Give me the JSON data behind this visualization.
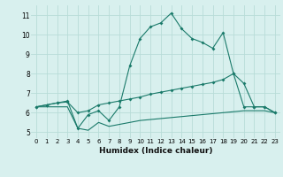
{
  "xlabel": "Humidex (Indice chaleur)",
  "x": [
    0,
    1,
    2,
    3,
    4,
    5,
    6,
    7,
    8,
    9,
    10,
    11,
    12,
    13,
    14,
    15,
    16,
    17,
    18,
    19,
    20,
    21,
    22,
    23
  ],
  "line1": [
    6.3,
    6.4,
    6.5,
    6.6,
    5.2,
    5.9,
    6.1,
    5.6,
    6.3,
    8.4,
    9.8,
    10.4,
    10.6,
    11.1,
    10.3,
    9.8,
    9.6,
    9.3,
    10.1,
    8.0,
    6.3,
    6.3,
    6.3,
    6.0
  ],
  "line2": [
    6.3,
    6.4,
    6.5,
    6.55,
    6.0,
    6.1,
    6.4,
    6.5,
    6.6,
    6.7,
    6.8,
    6.95,
    7.05,
    7.15,
    7.25,
    7.35,
    7.45,
    7.55,
    7.7,
    8.0,
    7.5,
    6.3,
    6.3,
    6.0
  ],
  "line3": [
    6.3,
    6.3,
    6.3,
    6.3,
    5.2,
    5.1,
    5.5,
    5.3,
    5.4,
    5.5,
    5.6,
    5.65,
    5.7,
    5.75,
    5.8,
    5.85,
    5.9,
    5.95,
    6.0,
    6.05,
    6.1,
    6.1,
    6.1,
    6.0
  ],
  "color": "#1a7a6a",
  "bg_color": "#d8f0ee",
  "grid_color": "#b8dcd8",
  "ylim": [
    4.7,
    11.5
  ],
  "xlim": [
    -0.5,
    23.5
  ],
  "yticks": [
    5,
    6,
    7,
    8,
    9,
    10,
    11
  ],
  "xticks": [
    0,
    1,
    2,
    3,
    4,
    5,
    6,
    7,
    8,
    9,
    10,
    11,
    12,
    13,
    14,
    15,
    16,
    17,
    18,
    19,
    20,
    21,
    22,
    23
  ]
}
